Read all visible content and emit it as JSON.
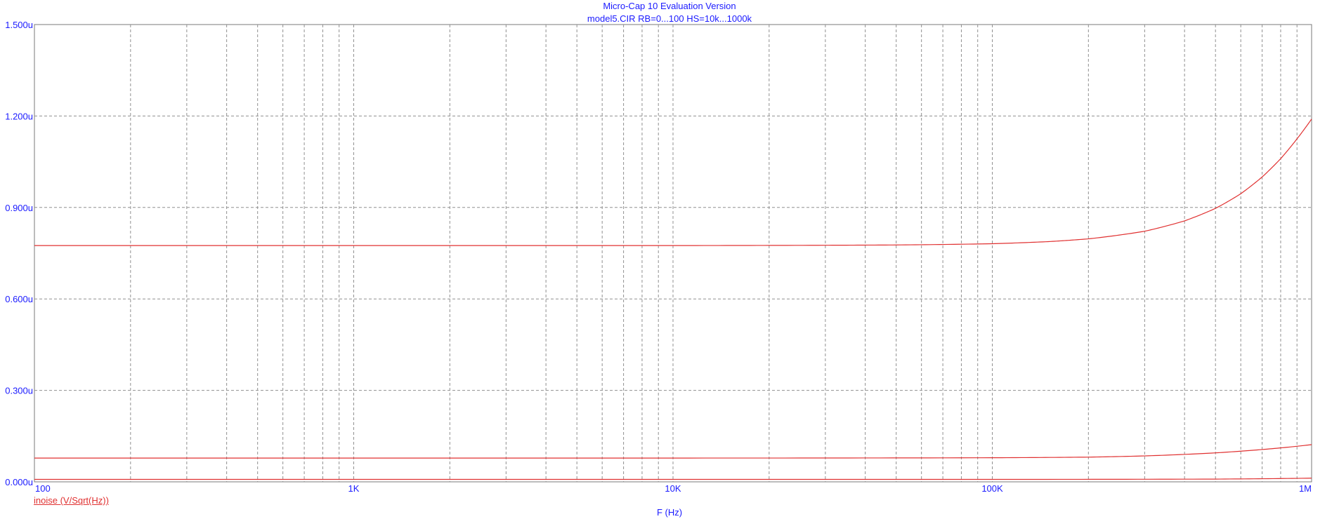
{
  "header": {
    "title": "Micro-Cap 10 Evaluation Version",
    "subtitle": "model5.CIR RB=0...100 HS=10k...1000k"
  },
  "chart_data": {
    "type": "line",
    "title": "Micro-Cap 10 Evaluation Version",
    "subtitle": "model5.CIR RB=0...100 HS=10k...1000k",
    "xlabel": "F (Hz)",
    "ylabel": "",
    "xscale": "log",
    "xlim": [
      100,
      1000000
    ],
    "ylim": [
      0,
      1.5
    ],
    "y_unit": "u",
    "grid": true,
    "legend": "bottom-left",
    "x_ticks": [
      {
        "value": 100,
        "label": "100"
      },
      {
        "value": 1000,
        "label": "1K"
      },
      {
        "value": 10000,
        "label": "10K"
      },
      {
        "value": 100000,
        "label": "100K"
      },
      {
        "value": 1000000,
        "label": "1M"
      }
    ],
    "y_ticks": [
      {
        "value": 0,
        "label": "0.000u"
      },
      {
        "value": 0.3,
        "label": "0.300u"
      },
      {
        "value": 0.6,
        "label": "0.600u"
      },
      {
        "value": 0.9,
        "label": "0.900u"
      },
      {
        "value": 1.2,
        "label": "1.200u"
      },
      {
        "value": 1.5,
        "label": "1.500u"
      }
    ],
    "series_label": "inoise (V/Sqrt(Hz))",
    "color": "#e03030",
    "series": [
      {
        "x": [
          100,
          1000,
          10000,
          30000,
          50000,
          100000,
          150000,
          200000,
          300000,
          400000,
          500000,
          600000,
          700000,
          800000,
          900000,
          1000000
        ],
        "values": [
          0.775,
          0.775,
          0.775,
          0.776,
          0.777,
          0.781,
          0.788,
          0.797,
          0.822,
          0.856,
          0.897,
          0.945,
          1.0,
          1.06,
          1.125,
          1.19
        ]
      },
      {
        "x": [
          100,
          1000,
          10000,
          100000,
          200000,
          300000,
          500000,
          700000,
          1000000
        ],
        "values": [
          0.078,
          0.078,
          0.078,
          0.079,
          0.081,
          0.085,
          0.095,
          0.106,
          0.122
        ]
      },
      {
        "x": [
          100,
          10000,
          100000,
          500000,
          1000000
        ],
        "values": [
          0.008,
          0.008,
          0.008,
          0.009,
          0.012
        ]
      }
    ]
  }
}
